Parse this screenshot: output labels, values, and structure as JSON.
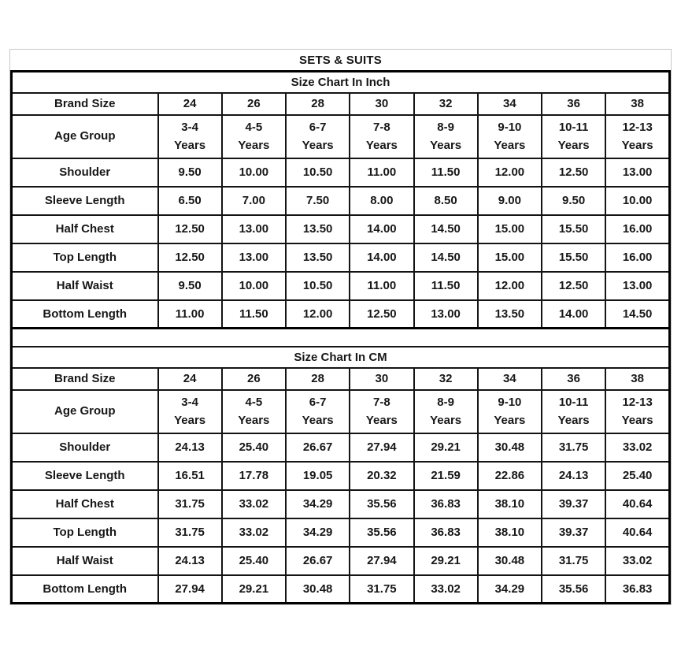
{
  "page_title": "SETS & SUITS",
  "colors": {
    "background": "#ffffff",
    "outer_frame_border": "#c9c9c9",
    "table_border": "#000000",
    "text": "#171717"
  },
  "sections": [
    {
      "title": "Size Chart In Inch",
      "header": {
        "label": "Brand Size",
        "sizes": [
          "24",
          "26",
          "28",
          "30",
          "32",
          "34",
          "36",
          "38"
        ]
      },
      "age_row": {
        "label": "Age Group",
        "values": [
          "3-4\nYears",
          "4-5\nYears",
          "6-7\nYears",
          "7-8\nYears",
          "8-9\nYears",
          "9-10\nYears",
          "10-11\nYears",
          "12-13\nYears"
        ]
      },
      "rows": [
        {
          "label": "Shoulder",
          "values": [
            "9.50",
            "10.00",
            "10.50",
            "11.00",
            "11.50",
            "12.00",
            "12.50",
            "13.00"
          ]
        },
        {
          "label": "Sleeve Length",
          "values": [
            "6.50",
            "7.00",
            "7.50",
            "8.00",
            "8.50",
            "9.00",
            "9.50",
            "10.00"
          ]
        },
        {
          "label": "Half Chest",
          "values": [
            "12.50",
            "13.00",
            "13.50",
            "14.00",
            "14.50",
            "15.00",
            "15.50",
            "16.00"
          ]
        },
        {
          "label": "Top Length",
          "values": [
            "12.50",
            "13.00",
            "13.50",
            "14.00",
            "14.50",
            "15.00",
            "15.50",
            "16.00"
          ]
        },
        {
          "label": "Half Waist",
          "values": [
            "9.50",
            "10.00",
            "10.50",
            "11.00",
            "11.50",
            "12.00",
            "12.50",
            "13.00"
          ]
        },
        {
          "label": "Bottom Length",
          "values": [
            "11.00",
            "11.50",
            "12.00",
            "12.50",
            "13.00",
            "13.50",
            "14.00",
            "14.50"
          ]
        }
      ]
    },
    {
      "title": "Size Chart In CM",
      "header": {
        "label": "Brand Size",
        "sizes": [
          "24",
          "26",
          "28",
          "30",
          "32",
          "34",
          "36",
          "38"
        ]
      },
      "age_row": {
        "label": "Age Group",
        "values": [
          "3-4\nYears",
          "4-5\nYears",
          "6-7\nYears",
          "7-8\nYears",
          "8-9\nYears",
          "9-10\nYears",
          "10-11\nYears",
          "12-13\nYears"
        ]
      },
      "rows": [
        {
          "label": "Shoulder",
          "values": [
            "24.13",
            "25.40",
            "26.67",
            "27.94",
            "29.21",
            "30.48",
            "31.75",
            "33.02"
          ]
        },
        {
          "label": "Sleeve Length",
          "values": [
            "16.51",
            "17.78",
            "19.05",
            "20.32",
            "21.59",
            "22.86",
            "24.13",
            "25.40"
          ]
        },
        {
          "label": "Half Chest",
          "values": [
            "31.75",
            "33.02",
            "34.29",
            "35.56",
            "36.83",
            "38.10",
            "39.37",
            "40.64"
          ]
        },
        {
          "label": "Top Length",
          "values": [
            "31.75",
            "33.02",
            "34.29",
            "35.56",
            "36.83",
            "38.10",
            "39.37",
            "40.64"
          ]
        },
        {
          "label": "Half Waist",
          "values": [
            "24.13",
            "25.40",
            "26.67",
            "27.94",
            "29.21",
            "30.48",
            "31.75",
            "33.02"
          ]
        },
        {
          "label": "Bottom Length",
          "values": [
            "27.94",
            "29.21",
            "30.48",
            "31.75",
            "33.02",
            "34.29",
            "35.56",
            "36.83"
          ]
        }
      ]
    }
  ],
  "chart_data": [
    {
      "type": "table",
      "title": "Size Chart In Inch",
      "columns": [
        "Brand Size",
        "24",
        "26",
        "28",
        "30",
        "32",
        "34",
        "36",
        "38"
      ],
      "rows": [
        [
          "Age Group",
          "3-4 Years",
          "4-5 Years",
          "6-7 Years",
          "7-8 Years",
          "8-9 Years",
          "9-10 Years",
          "10-11 Years",
          "12-13 Years"
        ],
        [
          "Shoulder",
          9.5,
          10.0,
          10.5,
          11.0,
          11.5,
          12.0,
          12.5,
          13.0
        ],
        [
          "Sleeve Length",
          6.5,
          7.0,
          7.5,
          8.0,
          8.5,
          9.0,
          9.5,
          10.0
        ],
        [
          "Half Chest",
          12.5,
          13.0,
          13.5,
          14.0,
          14.5,
          15.0,
          15.5,
          16.0
        ],
        [
          "Top Length",
          12.5,
          13.0,
          13.5,
          14.0,
          14.5,
          15.0,
          15.5,
          16.0
        ],
        [
          "Half Waist",
          9.5,
          10.0,
          10.5,
          11.0,
          11.5,
          12.0,
          12.5,
          13.0
        ],
        [
          "Bottom Length",
          11.0,
          11.5,
          12.0,
          12.5,
          13.0,
          13.5,
          14.0,
          14.5
        ]
      ]
    },
    {
      "type": "table",
      "title": "Size Chart In CM",
      "columns": [
        "Brand Size",
        "24",
        "26",
        "28",
        "30",
        "32",
        "34",
        "36",
        "38"
      ],
      "rows": [
        [
          "Age Group",
          "3-4 Years",
          "4-5 Years",
          "6-7 Years",
          "7-8 Years",
          "8-9 Years",
          "9-10 Years",
          "10-11 Years",
          "12-13 Years"
        ],
        [
          "Shoulder",
          24.13,
          25.4,
          26.67,
          27.94,
          29.21,
          30.48,
          31.75,
          33.02
        ],
        [
          "Sleeve Length",
          16.51,
          17.78,
          19.05,
          20.32,
          21.59,
          22.86,
          24.13,
          25.4
        ],
        [
          "Half Chest",
          31.75,
          33.02,
          34.29,
          35.56,
          36.83,
          38.1,
          39.37,
          40.64
        ],
        [
          "Top Length",
          31.75,
          33.02,
          34.29,
          35.56,
          36.83,
          38.1,
          39.37,
          40.64
        ],
        [
          "Half Waist",
          24.13,
          25.4,
          26.67,
          27.94,
          29.21,
          30.48,
          31.75,
          33.02
        ],
        [
          "Bottom Length",
          27.94,
          29.21,
          30.48,
          31.75,
          33.02,
          34.29,
          35.56,
          36.83
        ]
      ]
    }
  ]
}
